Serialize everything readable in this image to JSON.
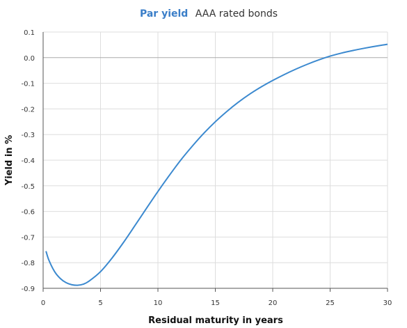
{
  "chart_data": {
    "type": "line",
    "title": "Par yield",
    "subtitle": "AAA rated bonds",
    "xlabel": "Residual maturity in years",
    "ylabel": "Yield in %",
    "xlim": [
      0,
      30
    ],
    "ylim": [
      -0.9,
      0.1
    ],
    "x_ticks": [
      0,
      5,
      10,
      15,
      20,
      25,
      30
    ],
    "y_ticks": [
      0.1,
      0.0,
      -0.1,
      -0.2,
      -0.3,
      -0.4,
      -0.5,
      -0.6,
      -0.7,
      -0.8,
      -0.9
    ],
    "x_tick_labels": [
      "0",
      "5",
      "10",
      "15",
      "20",
      "25",
      "30"
    ],
    "y_tick_labels": [
      "0.1",
      "0.0",
      "-0.1",
      "-0.2",
      "-0.3",
      "-0.4",
      "-0.5",
      "-0.6",
      "-0.7",
      "-0.8",
      "-0.9"
    ],
    "grid": true,
    "series": [
      {
        "x": [
          0.25,
          0.5,
          1,
          1.5,
          2,
          2.5,
          3,
          3.5,
          4,
          5,
          6,
          7,
          8,
          9,
          10,
          11,
          12,
          13,
          14,
          15,
          16,
          17,
          18,
          19,
          20,
          21,
          22,
          23,
          24,
          25,
          26,
          27,
          28,
          29,
          30
        ],
        "values": [
          -0.755,
          -0.79,
          -0.835,
          -0.862,
          -0.878,
          -0.886,
          -0.888,
          -0.884,
          -0.872,
          -0.835,
          -0.782,
          -0.721,
          -0.655,
          -0.588,
          -0.522,
          -0.459,
          -0.399,
          -0.345,
          -0.295,
          -0.25,
          -0.21,
          -0.174,
          -0.142,
          -0.114,
          -0.089,
          -0.066,
          -0.045,
          -0.026,
          -0.009,
          0.006,
          0.018,
          0.028,
          0.037,
          0.045,
          0.052
        ]
      }
    ]
  },
  "colors": {
    "title": "#3a7ec8",
    "line": "#3b89cf",
    "grid": "#dddddd",
    "zero_line": "#aaaaaa",
    "axis": "#555555"
  }
}
